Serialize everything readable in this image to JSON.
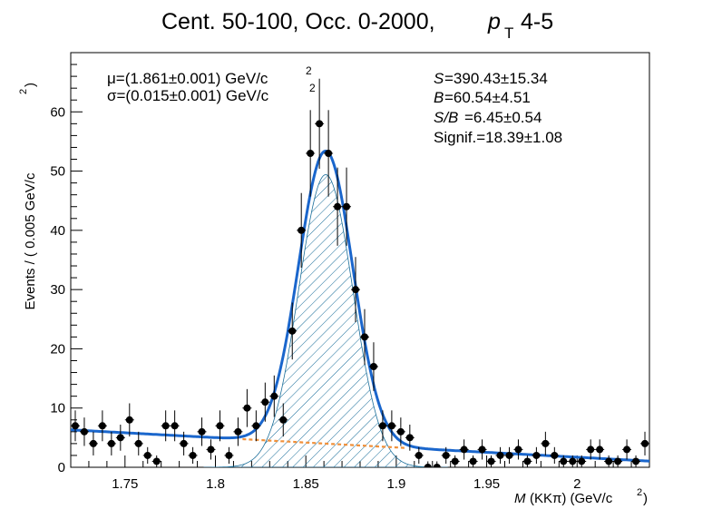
{
  "figure": {
    "title": "Cent. 50-100, Occ. 0-2000,",
    "title_pt": "p",
    "title_pt_sub": "T",
    "title_pt_range": "4-5"
  },
  "chart_data": {
    "type": "scatter",
    "xlabel_var": "M",
    "xlabel": "(KKπ) (GeV/c",
    "xlabel_sup": "2",
    "ylabel": "Events / ( 0.005 GeV/c",
    "ylabel_sup": "2",
    "xlim": [
      1.72,
      2.04
    ],
    "ylim": [
      0,
      70
    ],
    "x_ticks": [
      1.75,
      1.8,
      1.85,
      1.9,
      1.95,
      2.0
    ],
    "x_tick_labels": [
      "1.75",
      "1.8",
      "1.85",
      "1.9",
      "1.95",
      "2"
    ],
    "y_ticks": [
      0,
      10,
      20,
      30,
      40,
      50,
      60
    ],
    "y_tick_labels": [
      "0",
      "10",
      "20",
      "30",
      "40",
      "50",
      "60"
    ],
    "grid": false,
    "fit": {
      "mu_text": "μ=(1.861±0.001) GeV/c",
      "sigma_text": "σ=(0.015±0.001) GeV/c",
      "unit_sup": "2",
      "S_label": "S",
      "S_value": "=390.43±15.34",
      "B_label": "B",
      "B_value": "=60.54±4.51",
      "SB_label": "S/B",
      "SB_value": "=6.45±0.54",
      "signif_text": "Signif.=18.39±1.08",
      "mean": 1.861,
      "sigma": 0.015,
      "peak_height": 49.4,
      "background_slope": -16.5,
      "background_intercept": 34.7,
      "colors": {
        "total": "#1a66cc",
        "background": "#f0903a",
        "signal": "#1a66cc",
        "points": "#000000"
      }
    },
    "series": [
      {
        "values_x": [
          1.7225,
          1.7275,
          1.7325,
          1.7375,
          1.7425,
          1.7475,
          1.7525,
          1.7575,
          1.7625,
          1.7675,
          1.7725,
          1.7775,
          1.7825,
          1.7875,
          1.7925,
          1.7975,
          1.8025,
          1.8075,
          1.8125,
          1.8175,
          1.8225,
          1.8275,
          1.8325,
          1.8375,
          1.8425,
          1.8475,
          1.8525,
          1.8575,
          1.8625,
          1.8675,
          1.8725,
          1.8775,
          1.8825,
          1.8875,
          1.8925,
          1.8975,
          1.9025,
          1.9075,
          1.9125,
          1.9175,
          1.9225,
          1.9275,
          1.9325,
          1.9375,
          1.9425,
          1.9475,
          1.9525,
          1.9575,
          1.9625,
          1.9675,
          1.9725,
          1.9775,
          1.9825,
          1.9875,
          1.9925,
          1.9975,
          2.0025,
          2.0075,
          2.0125,
          2.0175,
          2.0225,
          2.0275,
          2.0325,
          2.0375
        ],
        "values_y": [
          7,
          6,
          4,
          7,
          4,
          5,
          8,
          4,
          2,
          1,
          7,
          7,
          4,
          2,
          6,
          3,
          7,
          2,
          6,
          10,
          7,
          11,
          12,
          8,
          23,
          40,
          53,
          58,
          53,
          44,
          44,
          30,
          22,
          17,
          7,
          7,
          6,
          5,
          2,
          0,
          0,
          2,
          1,
          3,
          1,
          3,
          1,
          2,
          2,
          3,
          1,
          2,
          4,
          2,
          1,
          1,
          1,
          3,
          3,
          1,
          1,
          3,
          1,
          4
        ],
        "errors": [
          2.6,
          2.4,
          2.0,
          2.6,
          2.0,
          2.2,
          2.8,
          2.0,
          1.4,
          1.0,
          2.6,
          2.6,
          2.0,
          1.4,
          2.4,
          1.7,
          2.6,
          1.4,
          2.4,
          3.2,
          2.6,
          3.3,
          3.5,
          2.8,
          4.8,
          6.3,
          7.3,
          7.6,
          7.3,
          6.6,
          6.6,
          5.5,
          4.7,
          4.1,
          2.6,
          2.6,
          2.4,
          2.2,
          1.4,
          1.0,
          1.0,
          1.4,
          1.0,
          1.7,
          1.0,
          1.7,
          1.0,
          1.4,
          1.4,
          1.7,
          1.0,
          1.4,
          2.0,
          1.4,
          1.0,
          1.0,
          1.0,
          1.7,
          1.7,
          1.0,
          1.0,
          1.7,
          1.0,
          2.0
        ]
      }
    ]
  }
}
